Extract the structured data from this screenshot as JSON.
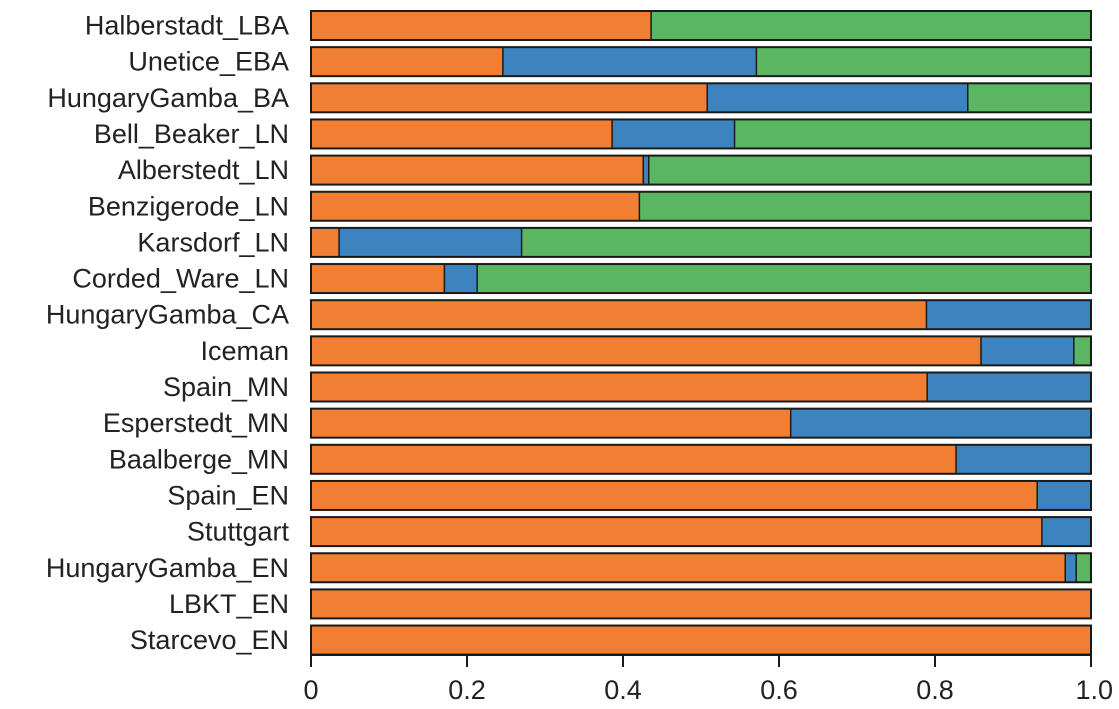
{
  "chart_data": {
    "type": "bar",
    "orientation": "horizontal",
    "stacked": true,
    "title": "",
    "xlabel": "",
    "ylabel": "",
    "xlim": [
      0,
      1
    ],
    "xticks": [
      0,
      0.2,
      0.4,
      0.6,
      0.8,
      1.0
    ],
    "xtick_labels": [
      "0",
      "0.2",
      "0.4",
      "0.6",
      "0.8",
      "1.0"
    ],
    "grid": false,
    "legend": "none",
    "categories": [
      "Halberstadt_LBA",
      "Unetice_EBA",
      "HungaryGamba_BA",
      "Bell_Beaker_LN",
      "Alberstedt_LN",
      "Benzigerode_LN",
      "Karsdorf_LN",
      "Corded_Ware_LN",
      "HungaryGamba_CA",
      "Iceman",
      "Spain_MN",
      "Esperstedt_MN",
      "Baalberge_MN",
      "Spain_EN",
      "Stuttgart",
      "HungaryGamba_EN",
      "LBKT_EN",
      "Starcevo_EN"
    ],
    "series": [
      {
        "color": "#f07f34",
        "values": [
          0.436,
          0.246,
          0.508,
          0.386,
          0.426,
          0.421,
          0.036,
          0.171,
          0.789,
          0.859,
          0.79,
          0.615,
          0.827,
          0.931,
          0.937,
          0.967,
          1.0,
          1.0
        ]
      },
      {
        "color": "#3b84bf",
        "values": [
          0.0,
          0.325,
          0.334,
          0.157,
          0.007,
          0.0,
          0.234,
          0.042,
          0.211,
          0.119,
          0.21,
          0.385,
          0.173,
          0.069,
          0.063,
          0.014,
          0.0,
          0.0
        ]
      },
      {
        "color": "#5ab661",
        "values": [
          0.564,
          0.429,
          0.158,
          0.457,
          0.567,
          0.579,
          0.73,
          0.787,
          0.0,
          0.022,
          0.0,
          0.0,
          0.0,
          0.0,
          0.0,
          0.019,
          0.0,
          0.0
        ]
      }
    ]
  }
}
